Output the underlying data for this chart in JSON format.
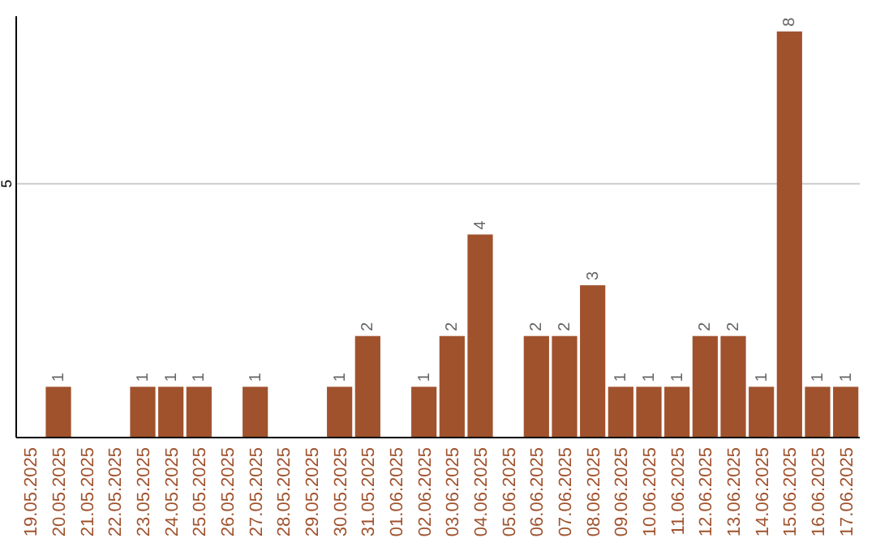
{
  "chart_data": {
    "type": "bar",
    "categories": [
      "19.05.2025",
      "20.05.2025",
      "21.05.2025",
      "22.05.2025",
      "23.05.2025",
      "24.05.2025",
      "25.05.2025",
      "26.05.2025",
      "27.05.2025",
      "28.05.2025",
      "29.05.2025",
      "30.05.2025",
      "31.05.2025",
      "01.06.2025",
      "02.06.2025",
      "03.06.2025",
      "04.06.2025",
      "05.06.2025",
      "06.06.2025",
      "07.06.2025",
      "08.06.2025",
      "09.06.2025",
      "10.06.2025",
      "11.06.2025",
      "12.06.2025",
      "13.06.2025",
      "14.06.2025",
      "15.06.2025",
      "16.06.2025",
      "17.06.2025"
    ],
    "values": [
      0,
      1,
      0,
      0,
      1,
      1,
      1,
      0,
      1,
      0,
      0,
      1,
      2,
      0,
      1,
      2,
      4,
      0,
      2,
      2,
      3,
      1,
      1,
      1,
      2,
      2,
      1,
      8,
      1,
      1
    ],
    "value_labels": [
      null,
      "1",
      null,
      null,
      "1",
      "1",
      "1",
      null,
      "1",
      null,
      null,
      "1",
      "2",
      null,
      "1",
      "2",
      "4",
      null,
      "2",
      "2",
      "3",
      "1",
      "1",
      "1",
      "2",
      "2",
      "1",
      "8",
      "1",
      "1"
    ],
    "color": "#a0522d",
    "ylim": [
      0,
      8.3
    ],
    "yticks": [
      5
    ],
    "grid": "y"
  }
}
